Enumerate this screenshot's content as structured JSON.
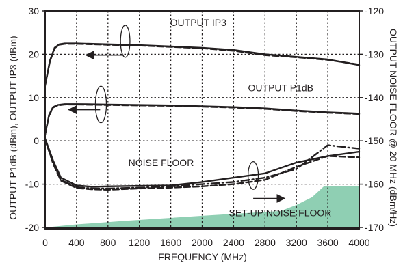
{
  "chart_data": {
    "type": "line",
    "title": "",
    "xlabel": "FREQUENCY (MHz)",
    "ylabel": "OUTPUT P1dB (dBm), OUTPUT IP3 (dBm)",
    "y2label": "OUTPUT NOISE FLOOR @ 20 MHz (dBm/Hz)",
    "xlim": [
      0,
      4000
    ],
    "ylim": [
      -20,
      30
    ],
    "y2lim": [
      -170,
      -120
    ],
    "grid": true,
    "legend": "none",
    "x_ticks": [
      "0",
      "400",
      "800",
      "1200",
      "1600",
      "2000",
      "2400",
      "2800",
      "3200",
      "3600",
      "4000"
    ],
    "y_ticks": [
      "30",
      "20",
      "10",
      "0",
      "-10",
      "-20"
    ],
    "y2_ticks": [
      "-120",
      "-130",
      "-140",
      "-150",
      "-160",
      "-170"
    ],
    "annotations": [
      {
        "text": "OUTPUT IP3",
        "x": 1950,
        "y": 26.5,
        "anchor": "middle"
      },
      {
        "text": "OUTPUT P1dB",
        "x": 3000,
        "y": 11.5,
        "anchor": "middle"
      },
      {
        "text": "NOISE FLOOR",
        "x": 1060,
        "y": -5.8,
        "anchor": "start"
      },
      {
        "text": "SET-UP NOISE FLOOR",
        "x": 2340,
        "y": -17.4,
        "anchor": "start"
      }
    ],
    "arrows": [
      {
        "from": [
          1000,
          19.8
        ],
        "to": [
          520,
          19.8
        ]
      },
      {
        "from": [
          700,
          7.2
        ],
        "to": [
          300,
          7.2
        ]
      },
      {
        "from": [
          2650,
          -13.3
        ],
        "to": [
          3050,
          -13.3
        ]
      }
    ],
    "ellipses": [
      {
        "cx": 1020,
        "cy": 23,
        "rx": 60,
        "ry": 3.7
      },
      {
        "cx": 710,
        "cy": 8.4,
        "rx": 70,
        "ry": 4.2
      },
      {
        "cx": 2650,
        "cy": -8,
        "rx": 65,
        "ry": 3.2
      }
    ],
    "series": [
      {
        "x": [
          0,
          60,
          120,
          180,
          250,
          400,
          800,
          1200,
          1600,
          2000,
          2400,
          2800,
          3200,
          3600,
          4000
        ],
        "y": [
          12.8,
          18.5,
          21.5,
          22.3,
          22.5,
          22.5,
          22.3,
          22.1,
          21.8,
          21.5,
          21,
          20,
          19.4,
          18.8,
          17.5
        ],
        "style": "solid"
      },
      {
        "x": [
          0,
          60,
          120,
          180,
          250,
          400,
          800,
          1200,
          1600,
          2000,
          2400,
          2800,
          3200,
          3600,
          4000
        ],
        "y": [
          12.8,
          18.3,
          21.4,
          22.2,
          22.4,
          22.4,
          22.2,
          22,
          21.7,
          21.4,
          20.8,
          19.8,
          19.3,
          18.7,
          17.6
        ],
        "style": "dashed"
      },
      {
        "x": [
          0,
          50,
          100,
          160,
          250,
          400,
          800,
          1200,
          1600,
          2000,
          2400,
          2800,
          3200,
          3600,
          4000
        ],
        "y": [
          1.5,
          6,
          7.8,
          8.3,
          8.5,
          8.5,
          8.4,
          8.3,
          8.2,
          8,
          7.8,
          7.5,
          7,
          6.6,
          6.3
        ],
        "style": "solid"
      },
      {
        "x": [
          0,
          50,
          100,
          160,
          250,
          400,
          800,
          1200,
          1600,
          2000,
          2400,
          2800,
          3200,
          3600,
          4000
        ],
        "y": [
          1.5,
          5.8,
          7.7,
          8.2,
          8.4,
          8.4,
          8.3,
          8.2,
          8.1,
          7.9,
          7.7,
          7.4,
          6.9,
          6.5,
          6.2
        ],
        "style": "dashed"
      },
      {
        "x": [
          0,
          100,
          200,
          400,
          600,
          800,
          1200,
          1600,
          2000,
          2400,
          2800,
          3200,
          3600,
          4000
        ],
        "y": [
          0.5,
          -4.5,
          -8.5,
          -10.3,
          -10.6,
          -10.5,
          -10.4,
          -10.3,
          -9.5,
          -8.5,
          -7.5,
          -5,
          -3.5,
          -2.5
        ],
        "style": "solid"
      },
      {
        "x": [
          0,
          100,
          200,
          400,
          600,
          800,
          1200,
          1600,
          2000,
          2400,
          2800,
          3200,
          3600,
          4000
        ],
        "y": [
          0.3,
          -5,
          -9,
          -10.7,
          -11,
          -11,
          -10.8,
          -10.5,
          -10,
          -9.5,
          -8.5,
          -6.5,
          -1,
          -1.8
        ],
        "style": "dash-dot"
      },
      {
        "x": [
          0,
          100,
          200,
          400,
          600,
          800,
          1200,
          1600,
          2000,
          2400,
          2800,
          3200,
          3600,
          4000
        ],
        "y": [
          0.3,
          -5.2,
          -9.2,
          -10.9,
          -11.2,
          -11.3,
          -11,
          -10.8,
          -10.5,
          -10,
          -9,
          -6,
          -3.5,
          -3.8
        ],
        "style": "dashed"
      },
      {
        "x": [
          0,
          400,
          800,
          1200,
          1600,
          2000,
          2400,
          2800,
          3200,
          3600,
          4000
        ],
        "y": [
          -20.3,
          -20.3,
          -20.3,
          -20.3,
          -20.3,
          -20.3,
          -20.3,
          -20.3,
          -20.3,
          -20.3,
          -20.3
        ],
        "style": "solid"
      }
    ],
    "setup_noise_floor_area": {
      "x": [
        0,
        400,
        1000,
        2000,
        3000,
        3200,
        3400,
        3550,
        4000
      ],
      "y": [
        -20,
        -19.3,
        -18.5,
        -17.3,
        -16.2,
        -14.8,
        -13,
        -10.5,
        -10.5
      ],
      "color": "#8fcfb3"
    },
    "colors": {
      "curve": "#231f20",
      "grid": "#231f20",
      "fill": "#8fcfb3"
    }
  }
}
